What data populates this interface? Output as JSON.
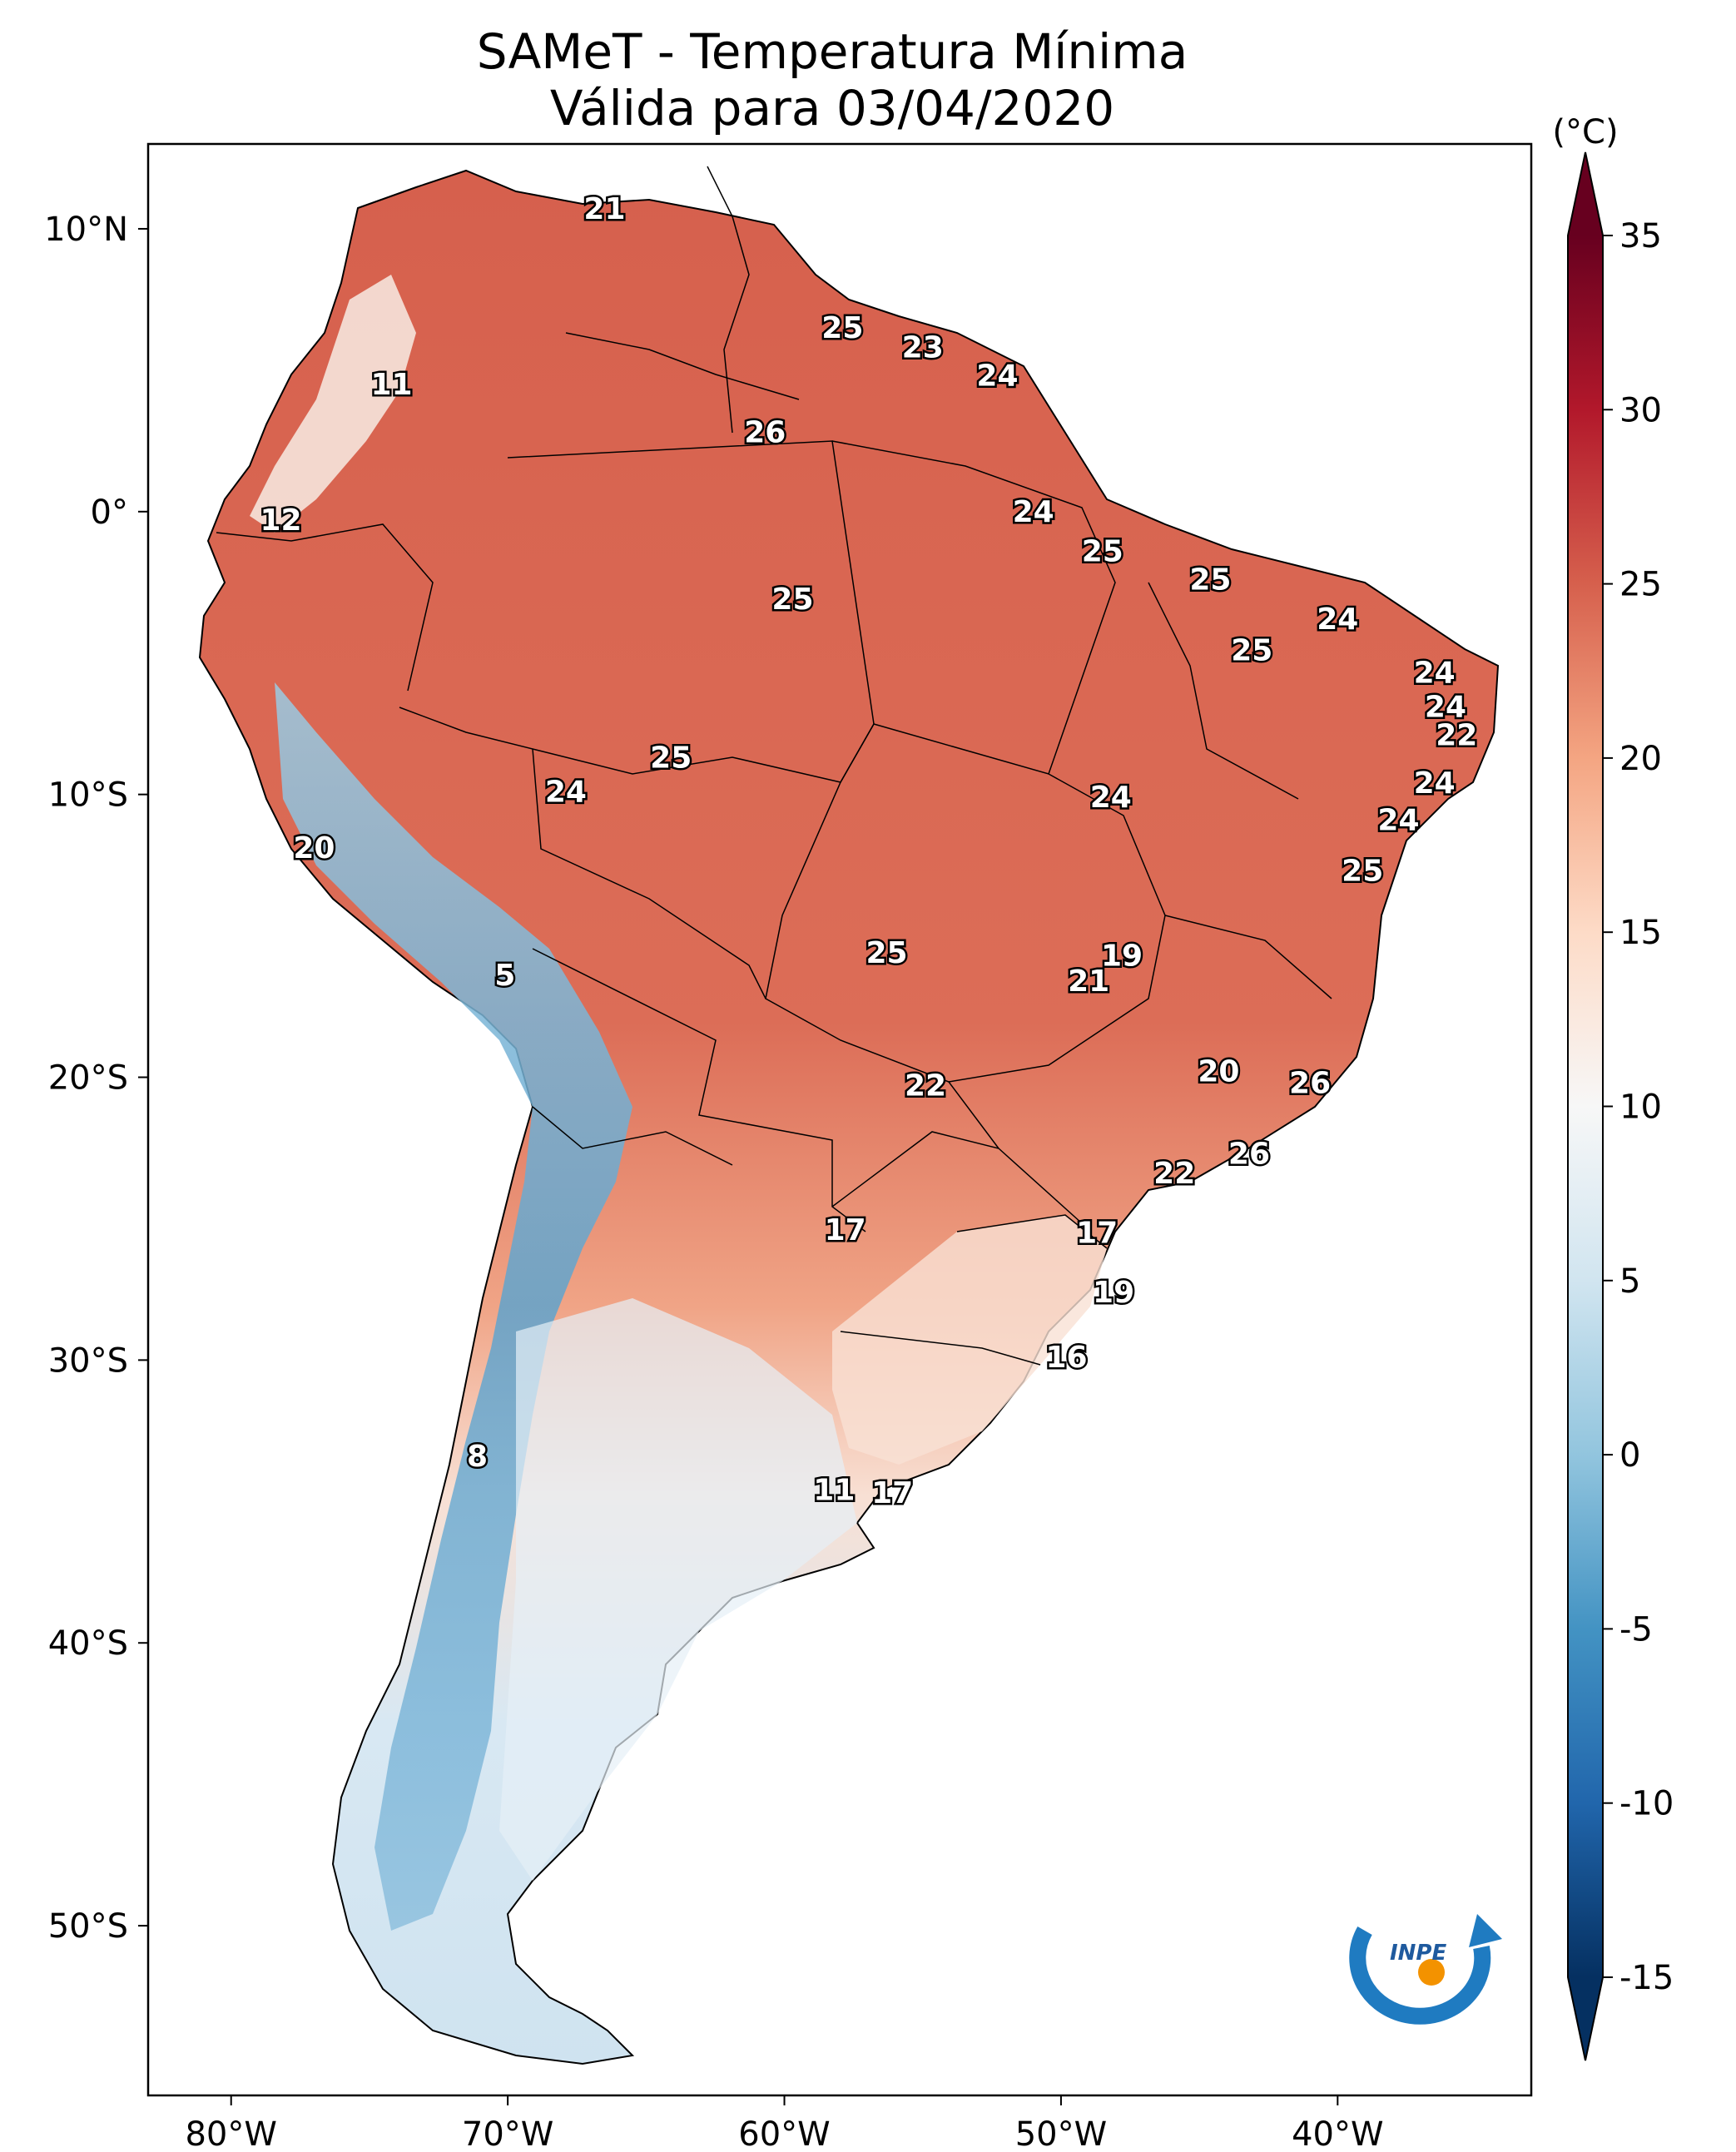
{
  "title": {
    "line1": "SAMeT - Temperatura Mínima",
    "line2": "Válida para 03/04/2020"
  },
  "map": {
    "lon_range": [
      -83,
      -33
    ],
    "lat_range": [
      -56,
      13
    ],
    "lon_ticks": [
      {
        "value": -80,
        "label": "80°W"
      },
      {
        "value": -70,
        "label": "70°W"
      },
      {
        "value": -60,
        "label": "60°W"
      },
      {
        "value": -50,
        "label": "50°W"
      },
      {
        "value": -40,
        "label": "40°W"
      }
    ],
    "lat_ticks": [
      {
        "value": 10,
        "label": "10°N"
      },
      {
        "value": 0,
        "label": "0°"
      },
      {
        "value": -10,
        "label": "10°S"
      },
      {
        "value": -20,
        "label": "20°S"
      },
      {
        "value": -30,
        "label": "30°S"
      },
      {
        "value": -40,
        "label": "40°S"
      },
      {
        "value": -50,
        "label": "50°S"
      }
    ],
    "point_labels": [
      {
        "lon": -66.5,
        "lat": 10.7,
        "text": "21"
      },
      {
        "lon": -57.9,
        "lat": 6.5,
        "text": "25"
      },
      {
        "lon": -55.0,
        "lat": 5.8,
        "text": "23"
      },
      {
        "lon": -52.3,
        "lat": 4.8,
        "text": "24"
      },
      {
        "lon": -74.2,
        "lat": 4.5,
        "text": "11"
      },
      {
        "lon": -60.7,
        "lat": 2.8,
        "text": "26"
      },
      {
        "lon": -78.2,
        "lat": -0.3,
        "text": "12"
      },
      {
        "lon": -51.0,
        "lat": 0.0,
        "text": "24"
      },
      {
        "lon": -48.5,
        "lat": -1.4,
        "text": "25"
      },
      {
        "lon": -59.7,
        "lat": -3.1,
        "text": "25"
      },
      {
        "lon": -44.6,
        "lat": -2.4,
        "text": "25"
      },
      {
        "lon": -40.0,
        "lat": -3.8,
        "text": "24"
      },
      {
        "lon": -43.1,
        "lat": -4.9,
        "text": "25"
      },
      {
        "lon": -36.5,
        "lat": -5.7,
        "text": "24"
      },
      {
        "lon": -36.1,
        "lat": -6.9,
        "text": "24"
      },
      {
        "lon": -35.7,
        "lat": -7.9,
        "text": "22"
      },
      {
        "lon": -64.1,
        "lat": -8.7,
        "text": "25"
      },
      {
        "lon": -67.9,
        "lat": -9.9,
        "text": "24"
      },
      {
        "lon": -48.2,
        "lat": -10.1,
        "text": "24"
      },
      {
        "lon": -36.5,
        "lat": -9.6,
        "text": "24"
      },
      {
        "lon": -37.8,
        "lat": -10.9,
        "text": "24"
      },
      {
        "lon": -77.0,
        "lat": -11.9,
        "text": "20"
      },
      {
        "lon": -39.1,
        "lat": -12.7,
        "text": "25"
      },
      {
        "lon": -56.3,
        "lat": -15.6,
        "text": "25"
      },
      {
        "lon": -47.8,
        "lat": -15.7,
        "text": "19"
      },
      {
        "lon": -49.0,
        "lat": -16.6,
        "text": "21"
      },
      {
        "lon": -70.1,
        "lat": -16.4,
        "text": "5"
      },
      {
        "lon": -44.3,
        "lat": -19.8,
        "text": "20"
      },
      {
        "lon": -54.9,
        "lat": -20.3,
        "text": "22"
      },
      {
        "lon": -41.0,
        "lat": -20.2,
        "text": "26"
      },
      {
        "lon": -43.2,
        "lat": -22.7,
        "text": "26"
      },
      {
        "lon": -45.9,
        "lat": -23.4,
        "text": "22"
      },
      {
        "lon": -57.8,
        "lat": -25.4,
        "text": "17"
      },
      {
        "lon": -48.7,
        "lat": -25.5,
        "text": "17"
      },
      {
        "lon": -48.1,
        "lat": -27.6,
        "text": "19"
      },
      {
        "lon": -49.8,
        "lat": -29.9,
        "text": "16"
      },
      {
        "lon": -71.1,
        "lat": -33.4,
        "text": "8"
      },
      {
        "lon": -58.2,
        "lat": -34.6,
        "text": "11"
      },
      {
        "lon": -56.1,
        "lat": -34.7,
        "text": "17"
      }
    ]
  },
  "colorbar": {
    "unit": "(°C)",
    "vmin": -15,
    "vmax": 35,
    "ticks": [
      {
        "value": 35,
        "label": "35"
      },
      {
        "value": 30,
        "label": "30"
      },
      {
        "value": 25,
        "label": "25"
      },
      {
        "value": 20,
        "label": "20"
      },
      {
        "value": 15,
        "label": "15"
      },
      {
        "value": 10,
        "label": "10"
      },
      {
        "value": 5,
        "label": "5"
      },
      {
        "value": 0,
        "label": "0"
      },
      {
        "value": -5,
        "label": "-5"
      },
      {
        "value": -10,
        "label": "-10"
      },
      {
        "value": -15,
        "label": "-15"
      }
    ],
    "colors": [
      "#053061",
      "#2166ac",
      "#4393c3",
      "#92c5de",
      "#d1e5f0",
      "#f7f7f7",
      "#fddbc7",
      "#f4a582",
      "#d6604d",
      "#b2182b",
      "#67001f"
    ]
  },
  "logo": {
    "text": "INPE",
    "primary_color": "#1f7bc1",
    "accent_color": "#f39200"
  }
}
